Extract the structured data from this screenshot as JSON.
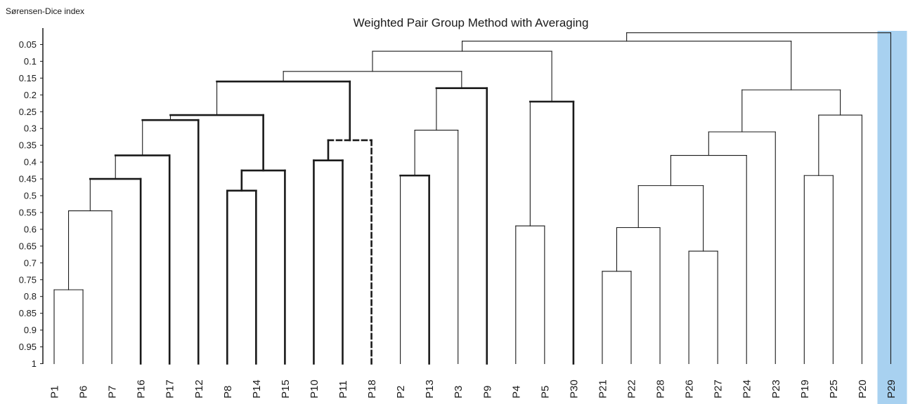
{
  "chart_data": {
    "type": "dendrogram",
    "title": "Weighted Pair Group Method with Averaging",
    "ylabel": "Sørensen-Dice index",
    "yticks": [
      "0.05",
      "0.1",
      "0.15",
      "0.2",
      "0.25",
      "0.3",
      "0.35",
      "0.4",
      "0.45",
      "0.5",
      "0.55",
      "0.6",
      "0.65",
      "0.7",
      "0.75",
      "0.8",
      "0.85",
      "0.9",
      "0.95",
      "1"
    ],
    "ylim": [
      0.0,
      1.0
    ],
    "leaves": [
      "P1",
      "P6",
      "P7",
      "P16",
      "P17",
      "P12",
      "P8",
      "P14",
      "P15",
      "P10",
      "P11",
      "P18",
      "P2",
      "P13",
      "P3",
      "P9",
      "P4",
      "P5",
      "P30",
      "P21",
      "P22",
      "P28",
      "P26",
      "P27",
      "P24",
      "P23",
      "P19",
      "P25",
      "P20",
      "P29"
    ],
    "highlight_leaf": "P29",
    "highlight_color": "#a8d1f0",
    "merges": [
      {
        "left": "P1",
        "right": "P6",
        "height": 0.78
      },
      {
        "left": "P1-P6",
        "right": "P7",
        "height": 0.545
      },
      {
        "left": "P1-P7",
        "right": "P16",
        "height": 0.45,
        "style": "bold-right"
      },
      {
        "left": "P1-P16",
        "right": "P17",
        "height": 0.38,
        "style": "bold-right"
      },
      {
        "left": "P1-P17",
        "right": "P12",
        "height": 0.275,
        "style": "bold-right"
      },
      {
        "left": "P8",
        "right": "P14",
        "height": 0.485,
        "style": "bold"
      },
      {
        "left": "P8-P14",
        "right": "P15",
        "height": 0.425,
        "style": "bold"
      },
      {
        "left": "P1-P12",
        "right": "P8-P15",
        "height": 0.26,
        "style": "bold-right"
      },
      {
        "left": "P10",
        "right": "P11",
        "height": 0.395,
        "style": "bold"
      },
      {
        "left": "P10-P11",
        "right": "P18",
        "height": 0.335,
        "style": "bold-left-dashed-right"
      },
      {
        "left": "P1-P15",
        "right": "P10-P18",
        "height": 0.16,
        "style": "bold-right"
      },
      {
        "left": "P2",
        "right": "P13",
        "height": 0.44,
        "style": "bold-right"
      },
      {
        "left": "P2-P13",
        "right": "P3",
        "height": 0.305
      },
      {
        "left": "P2-P3",
        "right": "P9",
        "height": 0.18,
        "style": "bold-right"
      },
      {
        "left": "P4",
        "right": "P5",
        "height": 0.59
      },
      {
        "left": "P4-P5",
        "right": "P30",
        "height": 0.22,
        "style": "bold-right"
      },
      {
        "left": "P1-P18",
        "right": "P2-P9",
        "height": 0.13
      },
      {
        "left": "P1-P9",
        "right": "P4-P30",
        "height": 0.07
      },
      {
        "left": "P21",
        "right": "P22",
        "height": 0.725
      },
      {
        "left": "P21-P22",
        "right": "P28",
        "height": 0.595
      },
      {
        "left": "P26",
        "right": "P27",
        "height": 0.665
      },
      {
        "left": "P21-P28",
        "right": "P26-P27",
        "height": 0.47
      },
      {
        "left": "P21-P27",
        "right": "P24",
        "height": 0.38
      },
      {
        "left": "P21-P24",
        "right": "P23",
        "height": 0.31
      },
      {
        "left": "P19",
        "right": "P25",
        "height": 0.44
      },
      {
        "left": "P19-P25",
        "right": "P20",
        "height": 0.26
      },
      {
        "left": "P21-P23",
        "right": "P19-P20",
        "height": 0.185
      },
      {
        "left": "P1-P30",
        "right": "P21-P20",
        "height": 0.04
      },
      {
        "left": "P1-P20",
        "right": "P29",
        "height": 0.015
      }
    ]
  }
}
